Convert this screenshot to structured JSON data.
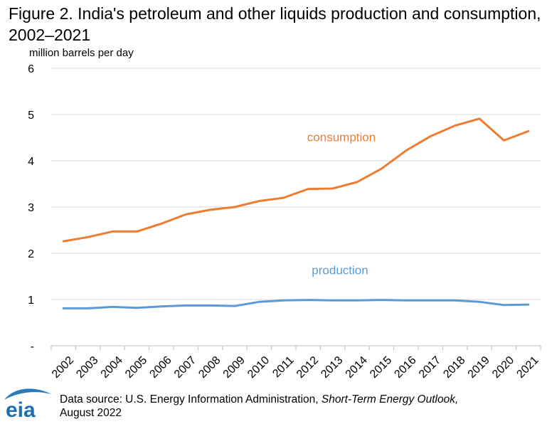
{
  "figure": {
    "title": "Figure 2. India's petroleum and other liquids production and consumption, 2002–2021",
    "source_prefix": "Data source: U.S. Energy Information Administration, ",
    "source_title": "Short-Term Energy Outlook,",
    "source_date": "August 2022",
    "logo_text": "eia"
  },
  "chart_data": {
    "type": "line",
    "title": "Figure 2. India's petroleum and other liquids production and consumption, 2002–2021",
    "ylabel": "million barrels per day",
    "xlabel": "",
    "ylim": [
      0,
      6
    ],
    "yticks": [
      "-",
      "1",
      "2",
      "3",
      "4",
      "5",
      "6"
    ],
    "x": [
      "2002",
      "2003",
      "2004",
      "2005",
      "2006",
      "2007",
      "2008",
      "2009",
      "2010",
      "2011",
      "2012",
      "2013",
      "2014",
      "2015",
      "2016",
      "2017",
      "2018",
      "2019",
      "2020",
      "2021"
    ],
    "grid": true,
    "series": [
      {
        "name": "consumption",
        "color": "#ED7D31",
        "values": [
          2.26,
          2.35,
          2.47,
          2.47,
          2.64,
          2.84,
          2.94,
          3.0,
          3.13,
          3.2,
          3.39,
          3.4,
          3.54,
          3.83,
          4.22,
          4.53,
          4.76,
          4.91,
          4.44,
          4.64
        ]
      },
      {
        "name": "production",
        "color": "#5B9BD5",
        "values": [
          0.81,
          0.81,
          0.84,
          0.82,
          0.85,
          0.87,
          0.87,
          0.86,
          0.95,
          0.98,
          0.99,
          0.98,
          0.98,
          0.99,
          0.98,
          0.98,
          0.98,
          0.95,
          0.88,
          0.89
        ]
      }
    ]
  }
}
